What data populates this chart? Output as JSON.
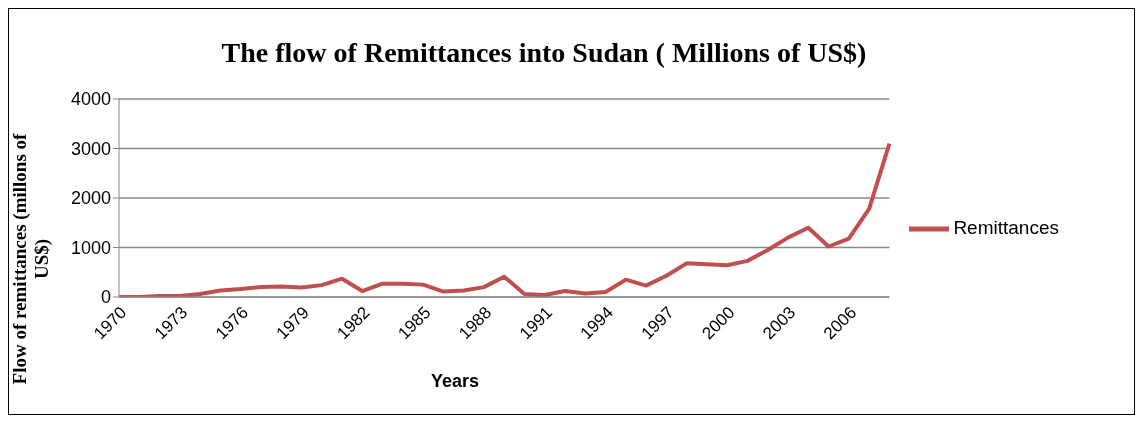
{
  "chart_data": {
    "type": "line",
    "title": "The flow of Remittances into Sudan ( Millions of US$)",
    "xlabel": "Years",
    "ylabel": "Flow of remittances (millons of US$)",
    "categories": [
      "1970",
      null,
      null,
      "1973",
      null,
      null,
      "1976",
      null,
      null,
      "1979",
      null,
      null,
      "1982",
      null,
      null,
      "1985",
      null,
      null,
      "1988",
      null,
      null,
      "1991",
      null,
      null,
      "1994",
      null,
      null,
      "1997",
      null,
      null,
      "2000",
      null,
      null,
      "2003",
      null,
      null,
      "2006",
      null,
      null
    ],
    "series": [
      {
        "name": "Remittances",
        "color": "#c0504d",
        "values": [
          0,
          0,
          20,
          20,
          60,
          130,
          160,
          200,
          210,
          190,
          240,
          370,
          120,
          270,
          270,
          250,
          110,
          130,
          200,
          410,
          60,
          40,
          120,
          70,
          100,
          350,
          230,
          430,
          680,
          660,
          640,
          730,
          950,
          1200,
          1400,
          1020,
          1180,
          1780,
          3100
        ]
      }
    ],
    "ylim": [
      0,
      4000
    ],
    "yticks": [
      0,
      1000,
      2000,
      3000,
      4000
    ],
    "grid": "y",
    "legend": "right",
    "marker": "none",
    "line_style": "solid"
  }
}
